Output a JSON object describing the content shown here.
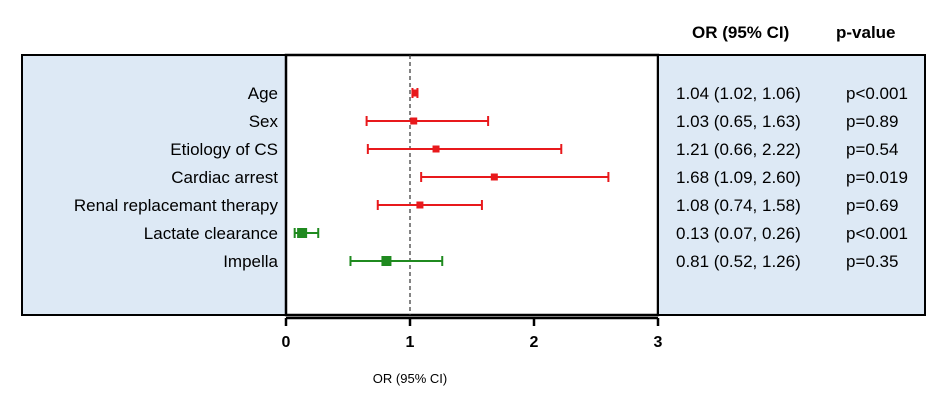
{
  "chart_data": {
    "type": "forest",
    "xlabel": "OR (95% CI)",
    "xlim": [
      0,
      3
    ],
    "xticks": [
      0,
      1,
      2,
      3
    ],
    "reference_line": 1,
    "colors": {
      "risk": "#e8191c",
      "protective": "#1f8a1f",
      "panel": "#dde9f5"
    },
    "headers": {
      "or_ci": "OR   (95% CI)",
      "p_value": "p-value"
    },
    "rows": [
      {
        "label": "Age",
        "or": 1.04,
        "lo": 1.02,
        "hi": 1.06,
        "or_text": "1.04 (1.02, 1.06)",
        "p_text": "p<0.001",
        "group": "risk"
      },
      {
        "label": "Sex",
        "or": 1.03,
        "lo": 0.65,
        "hi": 1.63,
        "or_text": "1.03 (0.65, 1.63)",
        "p_text": "p=0.89",
        "group": "risk"
      },
      {
        "label": "Etiology of CS",
        "or": 1.21,
        "lo": 0.66,
        "hi": 2.22,
        "or_text": "1.21 (0.66, 2.22)",
        "p_text": "p=0.54",
        "group": "risk"
      },
      {
        "label": "Cardiac arrest",
        "or": 1.68,
        "lo": 1.09,
        "hi": 2.6,
        "or_text": "1.68 (1.09, 2.60)",
        "p_text": "p=0.019",
        "group": "risk"
      },
      {
        "label": "Renal replacemant therapy",
        "or": 1.08,
        "lo": 0.74,
        "hi": 1.58,
        "or_text": "1.08 (0.74, 1.58)",
        "p_text": "p=0.69",
        "group": "risk"
      },
      {
        "label": "Lactate clearance",
        "or": 0.13,
        "lo": 0.07,
        "hi": 0.26,
        "or_text": "0.13 (0.07, 0.26)",
        "p_text": "p<0.001",
        "group": "protective"
      },
      {
        "label": "Impella",
        "or": 0.81,
        "lo": 0.52,
        "hi": 1.26,
        "or_text": "0.81 (0.52, 1.26)",
        "p_text": "p=0.35",
        "group": "protective"
      }
    ]
  }
}
